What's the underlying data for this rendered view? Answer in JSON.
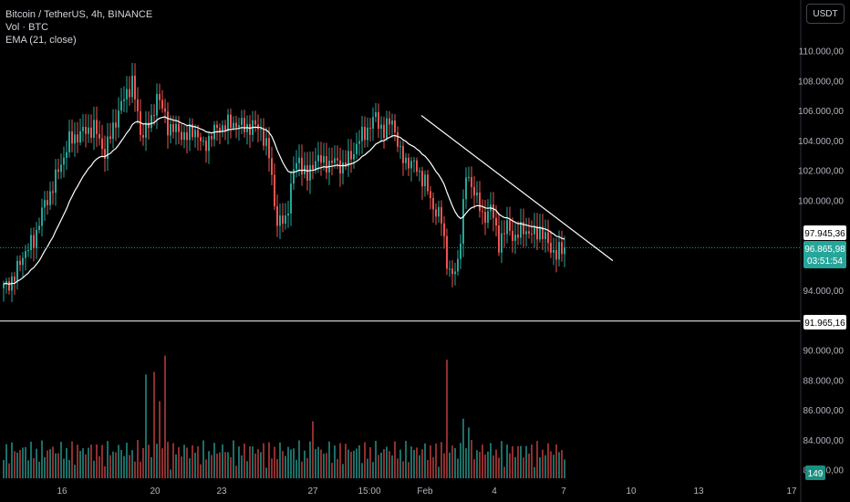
{
  "legend": {
    "symbol": "Bitcoin / TetherUS, 4h, BINANCE",
    "volume": "Vol · BTC",
    "ema": "EMA (21, close)"
  },
  "currency_button": "USDT",
  "colors": {
    "up": "#26a69a",
    "down": "#ef5350",
    "up_vol": "#1b6f68",
    "down_vol": "#8e2f2f",
    "ema": "#ffffff",
    "trendline": "#ffffff",
    "support": "#ffffff",
    "current": "#26a69a",
    "background": "#000000"
  },
  "chart_data": {
    "type": "candlestick",
    "symbol": "Bitcoin / TetherUS",
    "interval": "4h",
    "exchange": "BINANCE",
    "ylim": [
      79500,
      112500
    ],
    "y_ticks": [
      "110.000,00",
      "108.000,00",
      "106.000,00",
      "104.000,00",
      "102.000,00",
      "100.000,00",
      "94.000,00",
      "90.000,00",
      "88.000,00",
      "86.000,00",
      "84.000,00",
      "82.000,00"
    ],
    "x_ticks": [
      "16",
      "20",
      "23",
      "27",
      "15:00",
      "Feb",
      "4",
      "7",
      "10",
      "13",
      "17"
    ],
    "price_labels": {
      "ema_value": "97.945,36",
      "current_price": "96.865,98",
      "countdown": "03:51:54",
      "support_level": "91.965,16",
      "volume_value": "149"
    },
    "support_level": 91965.16,
    "current_price": 96865.98,
    "ema_value": 97945.36,
    "trendline": {
      "from": [
        0,
        105700
      ],
      "to": [
        40,
        96000
      ]
    },
    "keypoints": [
      [
        0,
        94200
      ],
      [
        4,
        94900
      ],
      [
        7,
        96400
      ],
      [
        11,
        97300
      ],
      [
        14,
        99300
      ],
      [
        17,
        100500
      ],
      [
        20,
        102000
      ],
      [
        24,
        104000
      ],
      [
        28,
        104500
      ],
      [
        33,
        104900
      ],
      [
        37,
        103200
      ],
      [
        42,
        106000
      ],
      [
        47,
        108000
      ],
      [
        50,
        104500
      ],
      [
        54,
        105200
      ],
      [
        56,
        107200
      ],
      [
        60,
        105000
      ],
      [
        63,
        104700
      ],
      [
        67,
        104300
      ],
      [
        70,
        104800
      ],
      [
        73,
        103500
      ],
      [
        76,
        104500
      ],
      [
        80,
        105000
      ],
      [
        85,
        105200
      ],
      [
        88,
        104900
      ],
      [
        91,
        105000
      ],
      [
        94,
        104800
      ],
      [
        97,
        103000
      ],
      [
        99,
        100000
      ],
      [
        100,
        98500
      ],
      [
        103,
        98700
      ],
      [
        106,
        102000
      ],
      [
        108,
        102800
      ],
      [
        111,
        101500
      ],
      [
        114,
        102900
      ],
      [
        117,
        102500
      ],
      [
        121,
        102600
      ],
      [
        124,
        102300
      ],
      [
        127,
        103000
      ],
      [
        130,
        104100
      ],
      [
        133,
        104800
      ],
      [
        136,
        105600
      ],
      [
        139,
        104600
      ],
      [
        142,
        105500
      ],
      [
        145,
        103000
      ],
      [
        148,
        102600
      ],
      [
        151,
        102200
      ],
      [
        154,
        101200
      ],
      [
        157,
        99600
      ],
      [
        160,
        98700
      ],
      [
        162,
        96000
      ],
      [
        164,
        94800
      ],
      [
        166,
        95900
      ],
      [
        169,
        101600
      ],
      [
        172,
        100800
      ],
      [
        175,
        98800
      ],
      [
        178,
        99600
      ],
      [
        181,
        97200
      ],
      [
        184,
        98300
      ],
      [
        187,
        97500
      ],
      [
        190,
        98200
      ],
      [
        193,
        97700
      ],
      [
        196,
        98100
      ],
      [
        199,
        97100
      ],
      [
        202,
        96400
      ],
      [
        205,
        96900
      ]
    ]
  }
}
